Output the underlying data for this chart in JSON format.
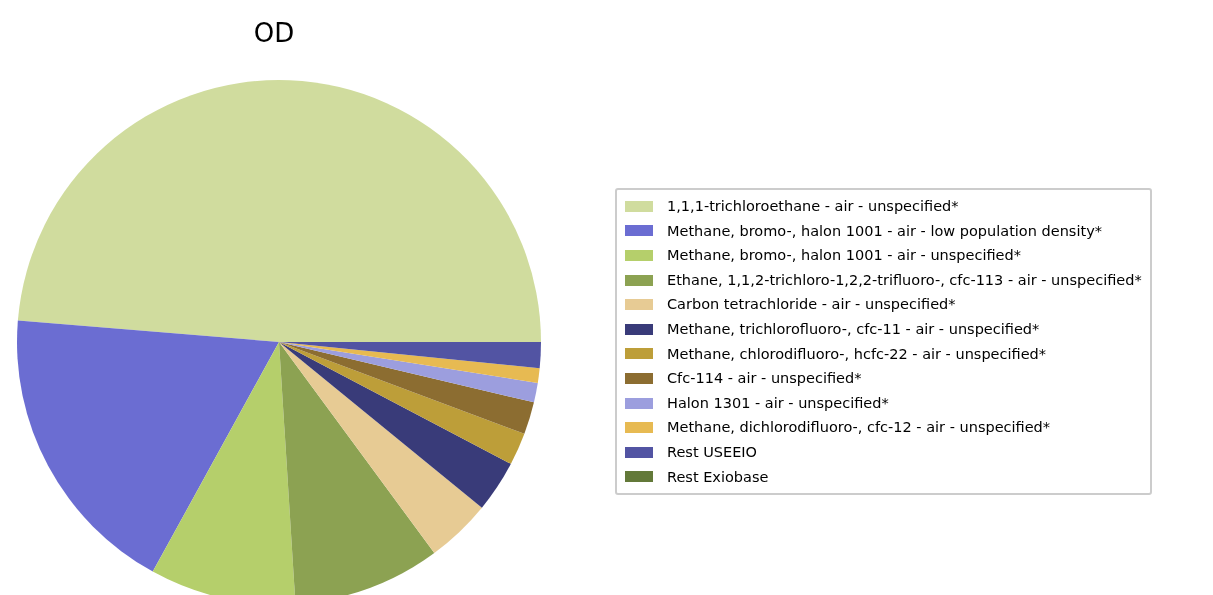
{
  "chart_data": {
    "type": "pie",
    "title": "OD",
    "legend": "right",
    "categories": [
      "1,1,1-trichloroethane - air - unspecified*",
      "Methane, bromo-, halon 1001 - air - low population density*",
      "Methane, bromo-, halon 1001 - air - unspecified*",
      "Ethane, 1,1,2-trichloro-1,2,2-trifluoro-, cfc-113 - air - unspecified*",
      "Carbon tetrachloride - air - unspecified*",
      "Methane, trichlorofluoro-, cfc-11 - air - unspecified*",
      "Methane, chlorodifluoro-, hcfc-22 - air - unspecified*",
      "Cfc-114 - air - unspecified*",
      "Halon 1301 - air - unspecified*",
      "Methane, dichlorodifluoro-, cfc-12 - air - unspecified*",
      "Rest USEEIO",
      "Rest Exiobase"
    ],
    "values": [
      48.7,
      18.3,
      9.0,
      9.1,
      4.0,
      3.2,
      2.0,
      2.0,
      1.2,
      0.9,
      1.6,
      0
    ],
    "colors": [
      "#d0dc9e",
      "#6b6dd2",
      "#b5cf6b",
      "#8ca252",
      "#e7cb94",
      "#393b79",
      "#bd9e39",
      "#8c6d31",
      "#9c9ede",
      "#e7ba52",
      "#5254a3",
      "#637939"
    ]
  }
}
